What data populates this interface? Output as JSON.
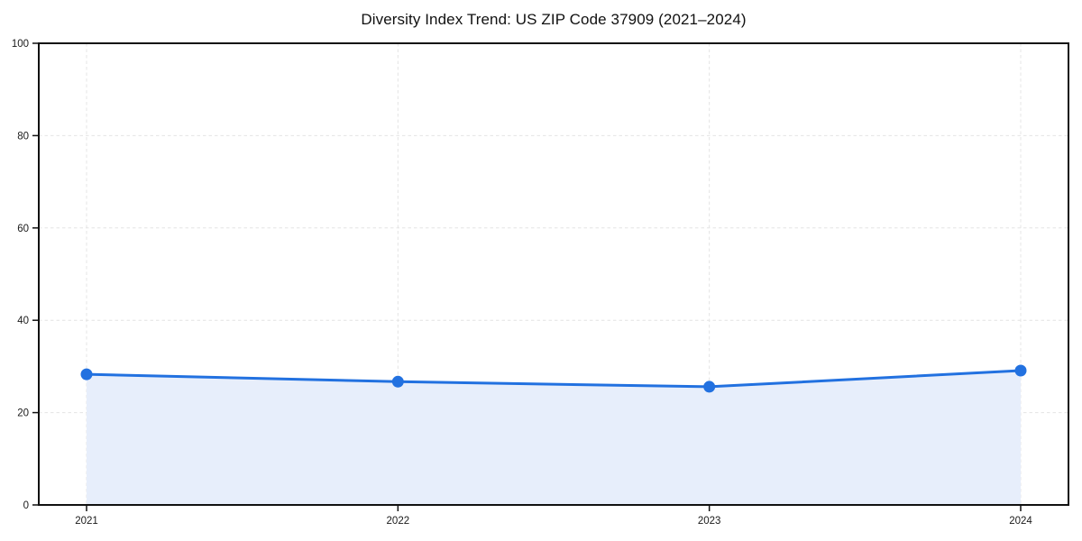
{
  "chart_data": {
    "type": "line",
    "title": "Diversity Index Trend: US ZIP Code 37909 (2021–2024)",
    "x": [
      "2021",
      "2022",
      "2023",
      "2024"
    ],
    "series": [
      {
        "name": "Diversity Index",
        "values": [
          28.3,
          26.7,
          25.6,
          29.1
        ]
      }
    ],
    "xlabel": "",
    "ylabel": "",
    "ylim": [
      0,
      100
    ],
    "yticks": [
      0,
      20,
      40,
      60,
      80,
      100
    ],
    "grid": true,
    "grid_style": "dashed",
    "legend": "none",
    "area_fill": true,
    "marker": "circle",
    "colors": {
      "line": "#2271e0",
      "marker": "#2271e0",
      "fill": "#e7eefb",
      "gridline": "#e4e4e4",
      "spine": "#111111",
      "text": "#111111"
    }
  }
}
